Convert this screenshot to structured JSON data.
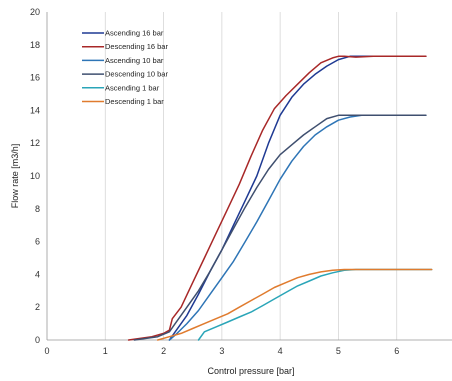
{
  "chart_data": {
    "type": "line",
    "xlabel": "Control pressure [bar]",
    "ylabel": "Flow rate [m3/h]",
    "xlim": [
      0,
      7
    ],
    "ylim": [
      0,
      20
    ],
    "xticks": [
      0,
      1,
      2,
      3,
      4,
      5,
      6
    ],
    "yticks": [
      0,
      2,
      4,
      6,
      8,
      10,
      12,
      14,
      16,
      18,
      20
    ],
    "grid": "vertical",
    "legend_position": "top-left",
    "series": [
      {
        "name": "Ascending 16 bar",
        "color": "#1f3a93",
        "x": [
          2.1,
          2.2,
          2.4,
          2.6,
          2.8,
          3.0,
          3.2,
          3.4,
          3.6,
          3.8,
          4.0,
          4.2,
          4.4,
          4.6,
          4.8,
          5.0,
          5.2,
          5.4,
          5.6,
          6.0,
          6.5
        ],
        "y": [
          0.0,
          0.5,
          1.5,
          2.8,
          4.2,
          5.5,
          7.0,
          8.5,
          10.0,
          12.0,
          13.7,
          14.8,
          15.6,
          16.2,
          16.7,
          17.1,
          17.3,
          17.3,
          17.3,
          17.3,
          17.3
        ]
      },
      {
        "name": "Descending 16 bar",
        "color": "#a82828",
        "x": [
          1.4,
          1.8,
          2.0,
          2.1,
          2.15,
          2.3,
          2.5,
          2.7,
          2.9,
          3.1,
          3.3,
          3.5,
          3.7,
          3.9,
          4.1,
          4.3,
          4.5,
          4.7,
          4.9,
          5.0,
          5.1,
          5.3,
          5.6,
          6.0,
          6.5
        ],
        "y": [
          0.0,
          0.2,
          0.4,
          0.6,
          1.3,
          2.0,
          3.5,
          5.0,
          6.5,
          8.0,
          9.5,
          11.2,
          12.8,
          14.1,
          14.9,
          15.6,
          16.3,
          16.9,
          17.2,
          17.3,
          17.3,
          17.25,
          17.3,
          17.3,
          17.3
        ]
      },
      {
        "name": "Ascending 10 bar",
        "color": "#2e75b6",
        "x": [
          2.1,
          2.2,
          2.4,
          2.6,
          2.8,
          3.0,
          3.2,
          3.4,
          3.6,
          3.8,
          4.0,
          4.2,
          4.4,
          4.6,
          4.8,
          5.0,
          5.2,
          5.4,
          5.6,
          6.0,
          6.5
        ],
        "y": [
          0.0,
          0.3,
          1.0,
          1.8,
          2.8,
          3.8,
          4.8,
          6.0,
          7.2,
          8.5,
          9.8,
          10.9,
          11.8,
          12.5,
          13.0,
          13.4,
          13.6,
          13.7,
          13.7,
          13.7,
          13.7
        ]
      },
      {
        "name": "Descending 10 bar",
        "color": "#3f4f6f",
        "x": [
          1.5,
          1.9,
          2.1,
          2.2,
          2.4,
          2.6,
          2.8,
          3.0,
          3.2,
          3.4,
          3.6,
          3.8,
          4.0,
          4.2,
          4.4,
          4.6,
          4.8,
          5.0,
          5.2,
          5.4,
          5.6,
          6.0,
          6.5
        ],
        "y": [
          0.0,
          0.2,
          0.5,
          1.0,
          2.0,
          3.0,
          4.2,
          5.5,
          6.8,
          8.1,
          9.3,
          10.4,
          11.3,
          11.9,
          12.5,
          13.0,
          13.5,
          13.7,
          13.7,
          13.7,
          13.7,
          13.7,
          13.7
        ]
      },
      {
        "name": "Ascending 1 bar",
        "color": "#2aa5b8",
        "x": [
          2.6,
          2.7,
          2.9,
          3.1,
          3.3,
          3.5,
          3.7,
          3.9,
          4.1,
          4.3,
          4.5,
          4.7,
          4.9,
          5.1,
          5.3,
          5.6,
          6.0,
          6.6
        ],
        "y": [
          0.0,
          0.5,
          0.8,
          1.1,
          1.4,
          1.7,
          2.1,
          2.5,
          2.9,
          3.3,
          3.6,
          3.9,
          4.1,
          4.25,
          4.3,
          4.3,
          4.3,
          4.3
        ]
      },
      {
        "name": "Descending 1 bar",
        "color": "#e07b2e",
        "x": [
          1.9,
          2.1,
          2.3,
          2.5,
          2.7,
          2.9,
          3.1,
          3.3,
          3.5,
          3.7,
          3.9,
          4.1,
          4.3,
          4.5,
          4.7,
          4.9,
          5.1,
          5.4,
          6.0,
          6.6
        ],
        "y": [
          0.0,
          0.2,
          0.4,
          0.7,
          1.0,
          1.3,
          1.6,
          2.0,
          2.4,
          2.8,
          3.2,
          3.5,
          3.8,
          4.0,
          4.15,
          4.25,
          4.3,
          4.3,
          4.3,
          4.3
        ]
      }
    ]
  }
}
